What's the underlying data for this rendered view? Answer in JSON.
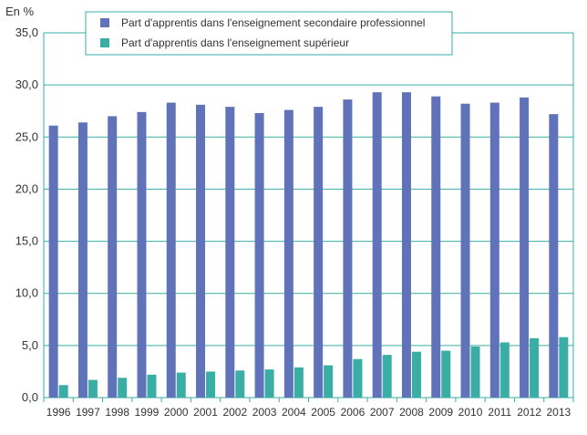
{
  "chart_data": {
    "type": "bar",
    "unit_label": "En %",
    "categories": [
      "1996",
      "1997",
      "1998",
      "1999",
      "2000",
      "2001",
      "2002",
      "2003",
      "2004",
      "2005",
      "2006",
      "2007",
      "2008",
      "2009",
      "2010",
      "2011",
      "2012",
      "2013"
    ],
    "series": [
      {
        "name": "Part d'apprentis dans l'enseignement secondaire professionnel",
        "color": "#6073b9",
        "values": [
          26.1,
          26.4,
          27.0,
          27.4,
          28.3,
          28.1,
          27.9,
          27.3,
          27.6,
          27.9,
          28.6,
          29.3,
          29.3,
          28.9,
          28.2,
          28.3,
          28.8,
          27.2
        ]
      },
      {
        "name": "Part d'apprentis dans l'enseignement supérieur",
        "color": "#3aada4",
        "values": [
          1.2,
          1.7,
          1.9,
          2.2,
          2.4,
          2.5,
          2.6,
          2.7,
          2.9,
          3.1,
          3.7,
          4.1,
          4.4,
          4.5,
          4.9,
          5.3,
          5.7,
          5.8
        ]
      }
    ],
    "ylim": [
      0,
      35
    ],
    "yticks": [
      "0,0",
      "5,0",
      "10,0",
      "15,0",
      "20,0",
      "25,0",
      "30,0",
      "35,0"
    ],
    "grid": true,
    "legend_position": "top-center",
    "gridline_color": "#3aada4"
  }
}
